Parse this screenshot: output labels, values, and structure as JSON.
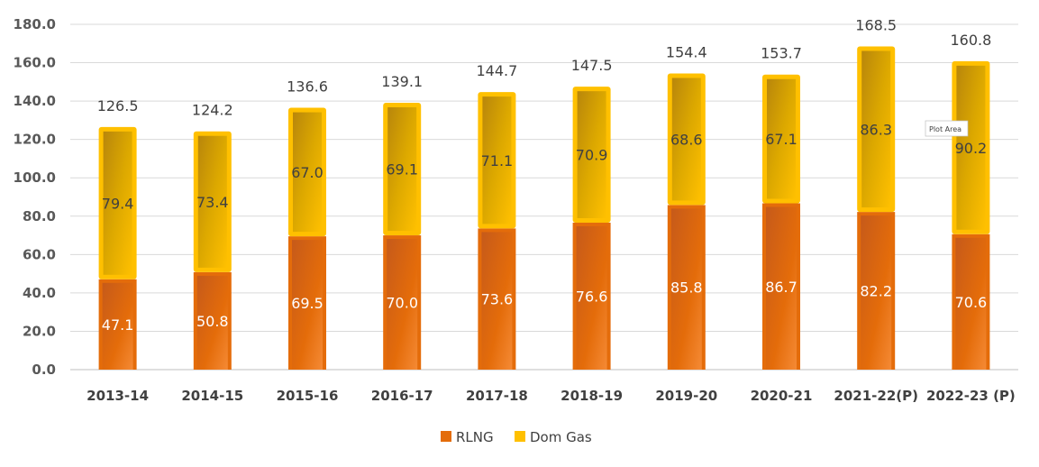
{
  "chart_data": {
    "type": "bar",
    "stacked": true,
    "categories": [
      "2013-14",
      "2014-15",
      "2015-16",
      "2016-17",
      "2017-18",
      "2018-19",
      "2019-20",
      "2020-21",
      "2021-22(P)",
      "2022-23 (P)"
    ],
    "series": [
      {
        "name": "RLNG",
        "values": [
          47.1,
          50.8,
          69.5,
          70.0,
          73.6,
          76.6,
          85.8,
          86.7,
          82.2,
          70.6
        ],
        "color": "#E46C0A"
      },
      {
        "name": "Dom Gas",
        "values": [
          79.4,
          73.4,
          67.0,
          69.1,
          71.1,
          70.9,
          68.6,
          67.1,
          86.3,
          90.2
        ],
        "color": "#FFC000"
      }
    ],
    "totals": [
      126.5,
      124.2,
      136.6,
      139.1,
      144.7,
      147.5,
      154.4,
      153.7,
      168.5,
      160.8
    ],
    "ylim": [
      0,
      180
    ],
    "yticks": [
      "0.0",
      "20.0",
      "40.0",
      "60.0",
      "80.0",
      "100.0",
      "120.0",
      "140.0",
      "160.0",
      "180.0"
    ],
    "grid": true,
    "legend_position": "bottom"
  },
  "tooltip": {
    "text": "Plot Area"
  }
}
